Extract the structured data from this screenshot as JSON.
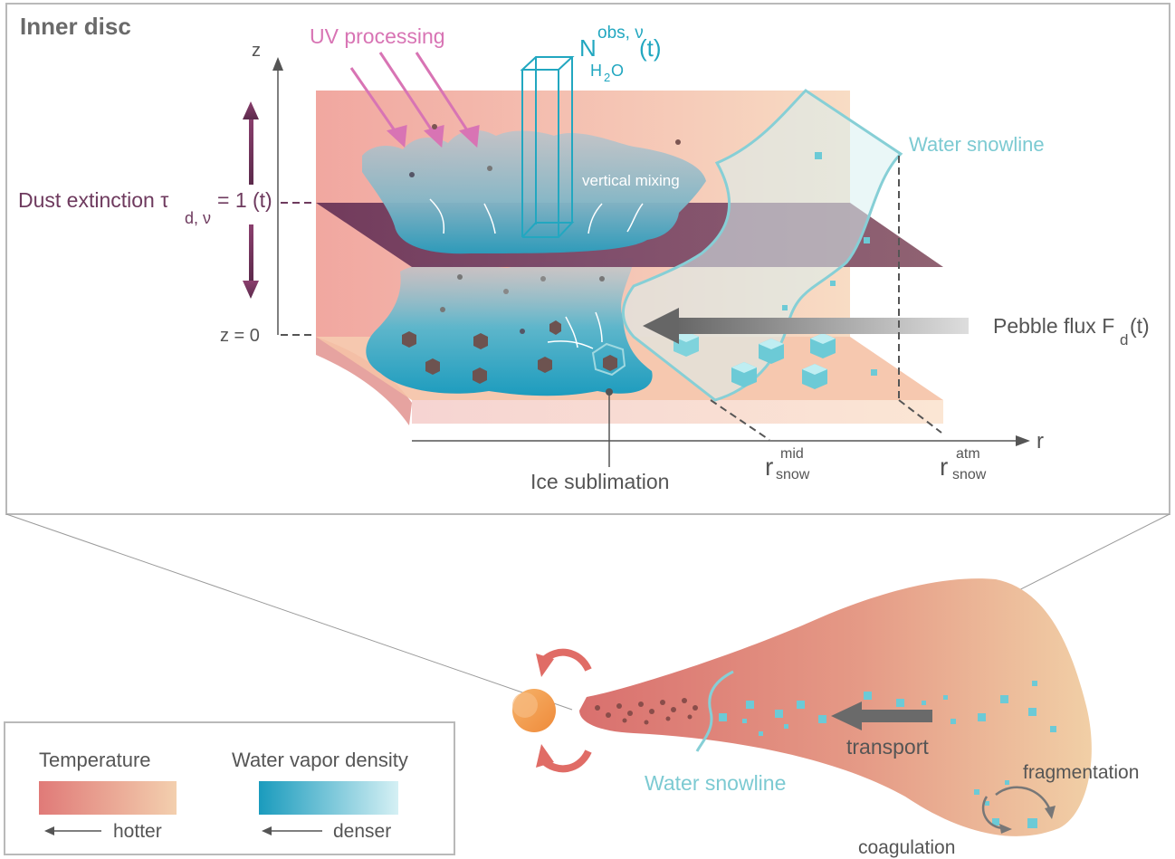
{
  "inset": {
    "title": "Inner disc",
    "z_axis": "z",
    "z_zero": "z = 0",
    "r_axis": "r",
    "uv": "UV processing",
    "column_base": "N",
    "column_sup": "obs, ν",
    "column_sub": "H",
    "column_sub2": "2",
    "column_sub3": "O",
    "column_arg": "(t)",
    "snowline": "Water snowline",
    "mixing": "vertical mixing",
    "dust_pre": "Dust extinction τ",
    "dust_sub": "d, ν",
    "dust_post": "= 1 (t)",
    "pebble_pre": "Pebble flux F",
    "pebble_sub": "d",
    "pebble_post": "(t)",
    "ice": "Ice sublimation",
    "r_base": "r",
    "rmid_sup": "mid",
    "rmid_sub": "snow",
    "ratm_sup": "atm",
    "ratm_sub": "snow"
  },
  "disc": {
    "snowline": "Water snowline",
    "transport": "transport",
    "fragmentation": "fragmentation",
    "coagulation": "coagulation"
  },
  "legend": {
    "temperature": "Temperature",
    "hotter": "hotter",
    "vapor": "Water vapor density",
    "denser": "denser"
  },
  "colors": {
    "hot": "#e07a78",
    "cool": "#f3cfae",
    "vapor_dense": "#1a9bbd",
    "vapor_thin": "#d5f0f4",
    "dust_plane": "#6e3a5e",
    "uv": "#d874b4",
    "snow": "#7ccad2",
    "text": "#555555"
  }
}
